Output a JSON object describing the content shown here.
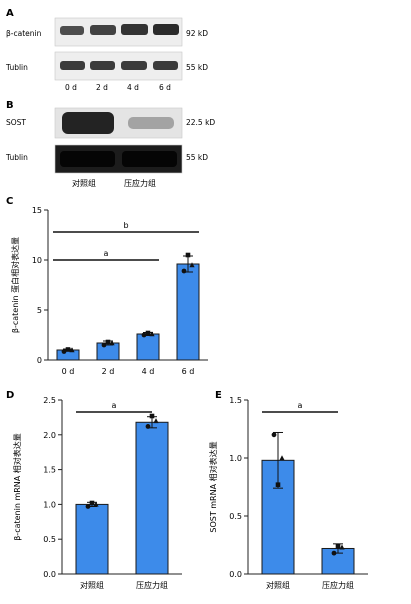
{
  "panels": {
    "A": {
      "label": "A",
      "row_labels": [
        "β-catenin",
        "Tublin"
      ],
      "size_labels": [
        "92 kD",
        "55 kD"
      ],
      "lane_labels": [
        "0 d",
        "2 d",
        "4 d",
        "6 d"
      ]
    },
    "B": {
      "label": "B",
      "row_labels": [
        "SOST",
        "Tublin"
      ],
      "size_labels": [
        "22.5 kD",
        "55 kD"
      ],
      "lane_labels": [
        "对照组",
        "压应力组"
      ]
    },
    "C": {
      "label": "C"
    },
    "D": {
      "label": "D"
    },
    "E": {
      "label": "E"
    }
  },
  "chart_data": [
    {
      "id": "C",
      "type": "bar",
      "categories": [
        "0 d",
        "2 d",
        "4 d",
        "6 d"
      ],
      "values": [
        1.0,
        1.7,
        2.6,
        9.6
      ],
      "errors": [
        0.1,
        0.2,
        0.15,
        0.8
      ],
      "points": [
        [
          0.85,
          1.05,
          1.0
        ],
        [
          1.5,
          1.8,
          1.7
        ],
        [
          2.5,
          2.7,
          2.6
        ],
        [
          8.9,
          10.5,
          9.5
        ]
      ],
      "ylabel": "β-catenin 蛋白相对表达量",
      "ylim": [
        0,
        15
      ],
      "yticks": [
        0,
        5,
        10,
        15
      ],
      "bar_color": "#3d8bea",
      "annotations": [
        {
          "text": "a",
          "from": 0,
          "to": 2
        },
        {
          "text": "b",
          "from": 0,
          "to": 3
        }
      ]
    },
    {
      "id": "D",
      "type": "bar",
      "categories": [
        "对照组",
        "压应力组"
      ],
      "values": [
        1.0,
        2.18
      ],
      "errors": [
        0.03,
        0.08
      ],
      "points": [
        [
          0.97,
          1.02,
          1.0
        ],
        [
          2.12,
          2.27,
          2.2
        ]
      ],
      "ylabel": "β-catenin mRNA 相对表达量",
      "ylim": [
        0,
        2.5
      ],
      "yticks": [
        0,
        0.5,
        1.0,
        1.5,
        2.0,
        2.5
      ],
      "bar_color": "#3d8bea",
      "annotations": [
        {
          "text": "a",
          "from": 0,
          "to": 1
        }
      ]
    },
    {
      "id": "E",
      "type": "bar",
      "categories": [
        "对照组",
        "压应力组"
      ],
      "values": [
        0.98,
        0.22
      ],
      "errors": [
        0.24,
        0.04
      ],
      "points": [
        [
          1.2,
          0.77,
          1.0
        ],
        [
          0.18,
          0.24,
          0.23
        ]
      ],
      "ylabel": "SOST mRNA 相对表达量",
      "ylim": [
        0,
        1.5
      ],
      "yticks": [
        0,
        0.5,
        1.0,
        1.5
      ],
      "bar_color": "#3d8bea",
      "annotations": [
        {
          "text": "a",
          "from": 0,
          "to": 1
        }
      ]
    }
  ]
}
